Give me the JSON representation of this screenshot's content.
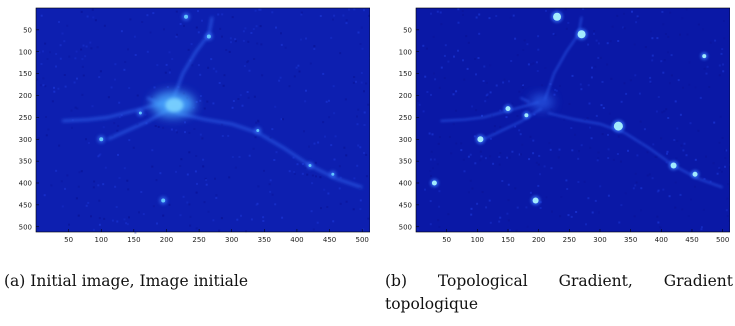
{
  "figure": {
    "panels": [
      {
        "id": "a",
        "caption": "(a) Initial image, Image initiale",
        "x_ticks": [
          "50",
          "100",
          "150",
          "200",
          "250",
          "300",
          "350",
          "400",
          "450",
          "500"
        ],
        "y_ticks": [
          "50",
          "100",
          "150",
          "200",
          "250",
          "300",
          "350",
          "400",
          "450",
          "500"
        ],
        "colormap": {
          "background": "#0d1fb0",
          "bright": "#66ccff"
        }
      },
      {
        "id": "b",
        "caption": "(b) Topological Gradient, Gradient topologique",
        "x_ticks": [
          "50",
          "100",
          "150",
          "200",
          "250",
          "300",
          "350",
          "400",
          "450",
          "500"
        ],
        "y_ticks": [
          "50",
          "100",
          "150",
          "200",
          "250",
          "300",
          "350",
          "400",
          "450",
          "500"
        ],
        "colormap": {
          "background": "#0a18a6",
          "bright": "#a9f3ff"
        }
      }
    ]
  }
}
